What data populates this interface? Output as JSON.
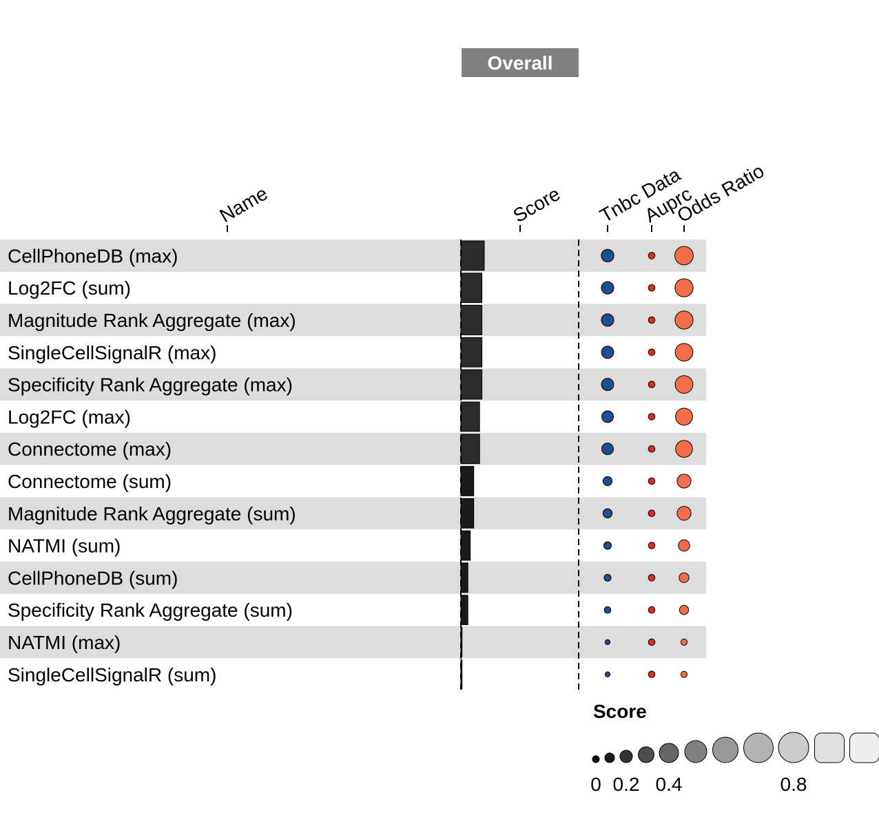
{
  "chart_data": {
    "type": "table",
    "group_header": "Overall",
    "columns": {
      "name": "Name",
      "score": "Score",
      "metrics": [
        "Tnbc Data",
        "Auprc",
        "Odds Ratio"
      ]
    },
    "rows": [
      {
        "name": "CellPhoneDB (max)",
        "score": 0.2,
        "tnbc": 0.58,
        "auprc": 0.2,
        "odds_ratio": 0.95
      },
      {
        "name": "Log2FC (sum)",
        "score": 0.18,
        "tnbc": 0.57,
        "auprc": 0.2,
        "odds_ratio": 0.93
      },
      {
        "name": "Magnitude Rank Aggregate (max)",
        "score": 0.18,
        "tnbc": 0.57,
        "auprc": 0.2,
        "odds_ratio": 0.92
      },
      {
        "name": "SingleCellSignalR (max)",
        "score": 0.18,
        "tnbc": 0.56,
        "auprc": 0.2,
        "odds_ratio": 0.9
      },
      {
        "name": "Specificity Rank Aggregate (max)",
        "score": 0.18,
        "tnbc": 0.56,
        "auprc": 0.2,
        "odds_ratio": 0.9
      },
      {
        "name": "Log2FC (max)",
        "score": 0.16,
        "tnbc": 0.52,
        "auprc": 0.2,
        "odds_ratio": 0.86
      },
      {
        "name": "Connectome (max)",
        "score": 0.16,
        "tnbc": 0.52,
        "auprc": 0.2,
        "odds_ratio": 0.85
      },
      {
        "name": "Connectome (sum)",
        "score": 0.11,
        "tnbc": 0.36,
        "auprc": 0.2,
        "odds_ratio": 0.66
      },
      {
        "name": "Magnitude Rank Aggregate (sum)",
        "score": 0.11,
        "tnbc": 0.36,
        "auprc": 0.2,
        "odds_ratio": 0.66
      },
      {
        "name": "NATMI (sum)",
        "score": 0.08,
        "tnbc": 0.26,
        "auprc": 0.2,
        "odds_ratio": 0.5
      },
      {
        "name": "CellPhoneDB (sum)",
        "score": 0.06,
        "tnbc": 0.22,
        "auprc": 0.2,
        "odds_ratio": 0.4
      },
      {
        "name": "Specificity Rank Aggregate (sum)",
        "score": 0.06,
        "tnbc": 0.2,
        "auprc": 0.2,
        "odds_ratio": 0.36
      },
      {
        "name": "NATMI (max)",
        "score": 0.01,
        "tnbc": 0.1,
        "auprc": 0.2,
        "odds_ratio": 0.18
      },
      {
        "name": "SingleCellSignalR (sum)",
        "score": 0.01,
        "tnbc": 0.1,
        "auprc": 0.2,
        "odds_ratio": 0.18
      }
    ],
    "legend": {
      "title": "Score",
      "tick_labels": [
        "0",
        "0.2",
        "0.4",
        "0.8"
      ],
      "tick_values": [
        0,
        0.2,
        0.4,
        0.8
      ],
      "steps": [
        0,
        0.1,
        0.2,
        0.3,
        0.4,
        0.5,
        0.6,
        0.7,
        0.8,
        0.9,
        1.0
      ]
    },
    "colors": {
      "row_band": "#dddddd",
      "header_box": "#808080",
      "score_bar": "#2b2b2b",
      "tnbc": "#1e4f8c",
      "auprc": "#d7301f",
      "odds_ratio": "#f46d4b"
    }
  }
}
